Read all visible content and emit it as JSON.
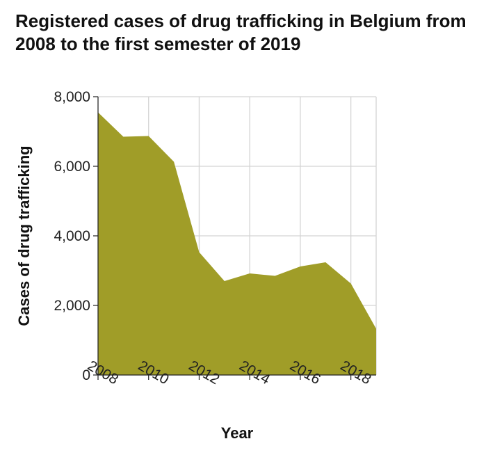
{
  "chart_data": {
    "type": "area",
    "title": "Registered cases of drug trafficking in Belgium from 2008 to the first semester of 2019",
    "xlabel": "Year",
    "ylabel": "Cases of drug trafficking",
    "x": [
      2008,
      2009,
      2010,
      2011,
      2012,
      2013,
      2014,
      2015,
      2016,
      2017,
      2018,
      2019
    ],
    "values": [
      7550,
      6850,
      6870,
      6130,
      3530,
      2700,
      2920,
      2850,
      3120,
      3240,
      2630,
      1330
    ],
    "xlim": [
      2008,
      2019
    ],
    "ylim": [
      0,
      8000
    ],
    "x_ticks": [
      "2008",
      "2010",
      "2012",
      "2014",
      "2016",
      "2018"
    ],
    "x_tick_values": [
      2008,
      2010,
      2012,
      2014,
      2016,
      2018
    ],
    "y_ticks": [
      "0",
      "2,000",
      "4,000",
      "6,000",
      "8,000"
    ],
    "y_tick_values": [
      0,
      2000,
      4000,
      6000,
      8000
    ],
    "grid": true,
    "fill_color": "#a09d28",
    "grid_color": "#d4d4d4"
  }
}
